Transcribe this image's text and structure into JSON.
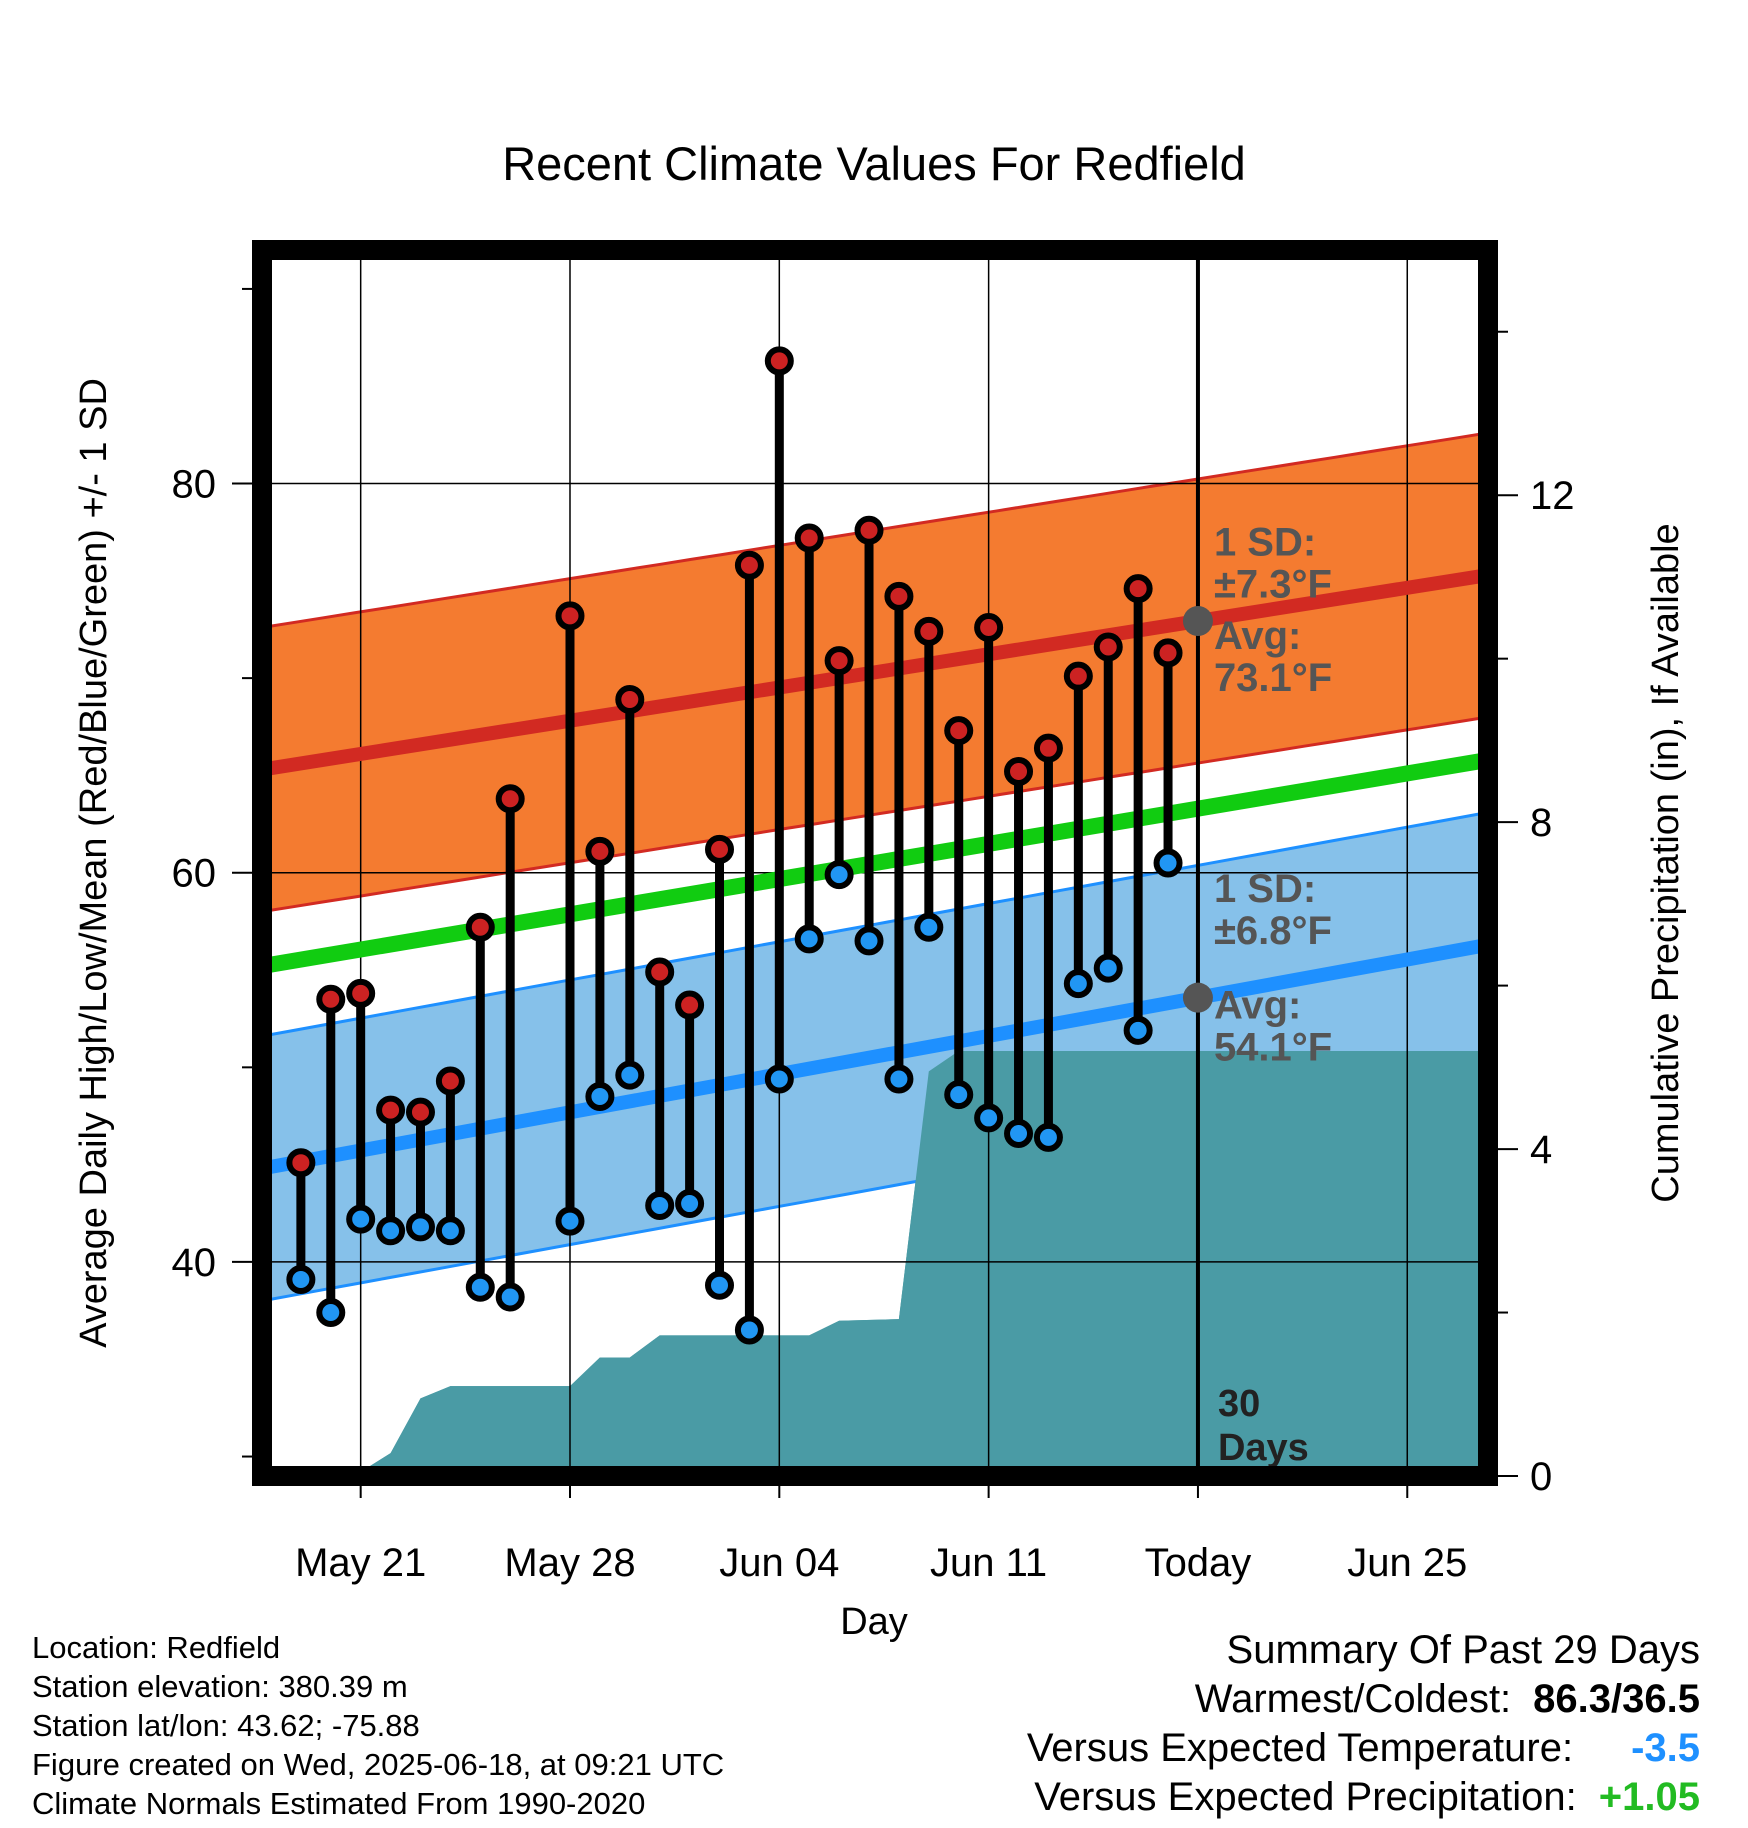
{
  "chart_data": {
    "type": "line",
    "title": "Recent Climate Values For Redfield",
    "xlabel": "Day",
    "ylabel": "Average Daily High/Low/Mean (Red/Blue/Green) +/- 1 SD",
    "y2label": "Cumulative Precipitation (in), If Available",
    "x_tick_labels": [
      "May 21",
      "May 28",
      "Jun 04",
      "Jun 11",
      "Today",
      "Jun 25"
    ],
    "x_tick_days": [
      3,
      10,
      17,
      24,
      31,
      38
    ],
    "xlim": [
      -0.3,
      40.7
    ],
    "ylim": [
      29,
      92
    ],
    "y_ticks": [
      40,
      60,
      80
    ],
    "y2lim": [
      0,
      15
    ],
    "y2_ticks": [
      0,
      4,
      8,
      12
    ],
    "today_day": 31,
    "days": [
      1,
      2,
      3,
      4,
      5,
      6,
      7,
      8,
      10,
      11,
      12,
      13,
      14,
      15,
      16,
      17,
      18,
      19,
      20,
      21,
      22,
      23,
      24,
      25,
      26,
      27,
      28,
      29,
      30
    ],
    "highs": [
      45.1,
      53.5,
      53.8,
      47.8,
      47.7,
      49.3,
      57.2,
      63.8,
      73.2,
      61.1,
      68.9,
      54.9,
      53.2,
      61.2,
      75.8,
      86.3,
      77.2,
      70.9,
      77.6,
      74.2,
      72.4,
      67.3,
      72.6,
      65.2,
      66.4,
      70.1,
      71.6,
      74.6,
      71.3
    ],
    "lows": [
      39.1,
      37.4,
      42.2,
      41.6,
      41.8,
      41.6,
      38.7,
      38.2,
      42.1,
      48.5,
      49.6,
      42.9,
      43.0,
      38.8,
      36.5,
      49.4,
      56.6,
      59.9,
      56.5,
      49.4,
      57.2,
      48.6,
      47.4,
      46.6,
      46.4,
      54.3,
      55.1,
      51.9,
      60.5
    ],
    "normals": {
      "high_avg": [
        65.3,
        75.3
      ],
      "high_sd": 7.3,
      "low_avg": [
        44.8,
        56.3
      ],
      "low_sd": 6.8,
      "mean_avg": [
        55.2,
        65.8
      ],
      "x_range": [
        -0.3,
        40.7
      ]
    },
    "precip_cumulative": [
      [
        2,
        0
      ],
      [
        3,
        0.05
      ],
      [
        4,
        0.28
      ],
      [
        5,
        0.95
      ],
      [
        6,
        1.1
      ],
      [
        10,
        1.1
      ],
      [
        11,
        1.45
      ],
      [
        12,
        1.45
      ],
      [
        13,
        1.72
      ],
      [
        17,
        1.72
      ],
      [
        18,
        1.72
      ],
      [
        19,
        1.9
      ],
      [
        21,
        1.92
      ],
      [
        22,
        4.95
      ],
      [
        23,
        5.2
      ],
      [
        30,
        5.2
      ],
      [
        40.7,
        5.2
      ]
    ],
    "annotations": {
      "high_sd": [
        "1 SD:",
        "±7.3°F"
      ],
      "high_avg": [
        "Avg:",
        "73.1°F"
      ],
      "low_sd": [
        "1 SD:",
        "±6.8°F"
      ],
      "low_avg": [
        "Avg:",
        "54.1°F"
      ],
      "window": [
        "30",
        "Days"
      ]
    }
  },
  "info": {
    "location": "Location: Redfield",
    "elevation": "Station elevation: 380.39 m",
    "latlon": "Station lat/lon: 43.62; -75.88",
    "created": "Figure created on Wed, 2025-06-18, at 09:21 UTC",
    "normals": "Climate Normals Estimated From 1990-2020"
  },
  "summary": {
    "heading": "Summary Of Past 29 Days",
    "warm_cold_label": "Warmest/Coldest:",
    "warm_cold_value": "86.3/36.5",
    "temp_label": "Versus Expected Temperature:",
    "temp_value": "-3.5",
    "precip_label": "Versus Expected Precipitation:",
    "precip_value": "+1.05"
  },
  "colors": {
    "high_band": "#f47b30",
    "high_line": "#d22a22",
    "low_band": "#86c1ea",
    "low_line": "#1e90ff",
    "mean_line": "#11cc11",
    "precip": "#4a9ba5",
    "high_dot": "#cc2222",
    "low_dot": "#2196f3",
    "today_dot": "#555555"
  }
}
